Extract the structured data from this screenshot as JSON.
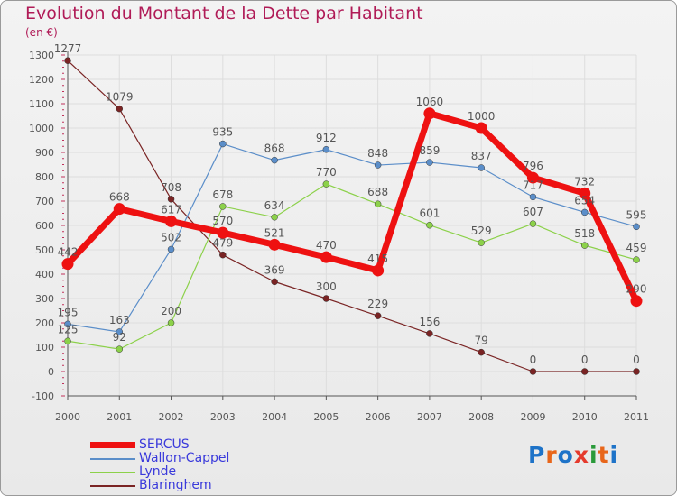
{
  "title": "Evolution du Montant de la Dette par Habitant",
  "subtitle": "(en €)",
  "logo": {
    "text": "Proxiti",
    "colors": [
      "#1e73c8",
      "#e8661a",
      "#1e73c8",
      "#e53a2d",
      "#2a9a3a",
      "#e8661a",
      "#1e73c8"
    ]
  },
  "colors": {
    "text": "#b01b57",
    "axis": "#555555",
    "grid": "#dddddd",
    "legend_text": "#3a3adb"
  },
  "chart_data": {
    "type": "line",
    "title": "Evolution du Montant de la Dette par Habitant",
    "subtitle": "(en €)",
    "x": [
      "2000",
      "2001",
      "2002",
      "2003",
      "2004",
      "2005",
      "2006",
      "2007",
      "2008",
      "2009",
      "2010",
      "2011"
    ],
    "ylim": [
      -100,
      1300
    ],
    "yticks": [
      -100,
      0,
      100,
      200,
      300,
      400,
      500,
      600,
      700,
      800,
      900,
      1000,
      1100,
      1200,
      1300
    ],
    "grid": true,
    "legend_position": "bottom-left",
    "series": [
      {
        "name": "SERCUS",
        "color": "#ee1111",
        "values": [
          442,
          668,
          617,
          570,
          521,
          470,
          415,
          1060,
          1000,
          796,
          732,
          290
        ],
        "labels": [
          "442",
          "668",
          "617",
          "570",
          "521",
          "470",
          "415",
          "1060",
          "1000",
          "796",
          "732",
          "290"
        ]
      },
      {
        "name": "Wallon-Cappel",
        "color": "#5b8ec9",
        "values": [
          195,
          163,
          502,
          935,
          868,
          912,
          848,
          859,
          837,
          717,
          654,
          595
        ],
        "labels": [
          "195",
          "163",
          "502",
          "935",
          "868",
          "912",
          "848",
          "859",
          "837",
          "717",
          "654",
          "595"
        ]
      },
      {
        "name": "Lynde",
        "color": "#8cd14a",
        "values": [
          125,
          92,
          200,
          678,
          634,
          770,
          688,
          601,
          529,
          607,
          518,
          459
        ],
        "labels": [
          "125",
          "92",
          "200",
          "678",
          "634",
          "770",
          "688",
          "601",
          "529",
          "607",
          "518",
          "459"
        ]
      },
      {
        "name": "Blaringhem",
        "color": "#7a2424",
        "values": [
          1277,
          1079,
          708,
          479,
          369,
          300,
          229,
          156,
          79,
          0,
          0,
          0
        ],
        "labels": [
          "1277",
          "1079",
          "708",
          "479",
          "369",
          "300",
          "229",
          "156",
          "79",
          "0",
          "0",
          "0"
        ]
      }
    ]
  }
}
